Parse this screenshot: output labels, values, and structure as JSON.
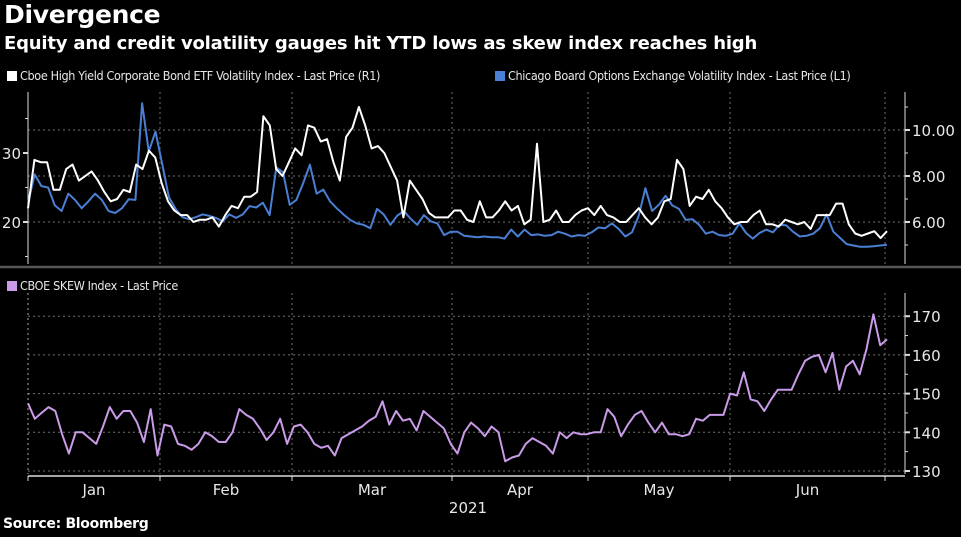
{
  "header": {
    "title": "Divergence",
    "subtitle": "Equity and credit volatility gauges hit YTD lows as skew index reaches  high"
  },
  "source": "Source: Bloomberg",
  "chart_data": [
    {
      "type": "line",
      "panel": "top",
      "x_labels": [
        "Jan",
        "Feb",
        "Mar",
        "Apr",
        "May",
        "Jun"
      ],
      "x_year_label": "2021",
      "grid": true,
      "legend_placement": "top-left",
      "left_axis": {
        "ticks": [
          20,
          30
        ],
        "ylim": [
          14.5,
          37
        ]
      },
      "right_axis": {
        "ticks": [
          "6.00",
          "8.00",
          "10.00"
        ],
        "tick_values": [
          6,
          8,
          10
        ],
        "ylim": [
          4.0,
          11.6
        ]
      },
      "series": [
        {
          "name": "Cboe High Yield Corporate Bond ETF Volatility Index - Last Price (R1)",
          "axis": "right",
          "color": "#ffffff",
          "values": [
            6.6,
            8.7,
            8.6,
            8.6,
            7.4,
            7.4,
            8.3,
            8.5,
            7.8,
            8.0,
            8.2,
            7.8,
            7.3,
            6.9,
            7.0,
            7.4,
            7.3,
            8.5,
            8.3,
            9.1,
            8.8,
            7.7,
            6.9,
            6.5,
            6.3,
            6.3,
            6.0,
            6.1,
            6.1,
            6.2,
            5.8,
            6.3,
            6.7,
            6.6,
            7.1,
            7.1,
            7.3,
            10.6,
            10.2,
            8.3,
            8.0,
            8.6,
            9.2,
            8.9,
            10.2,
            10.1,
            9.5,
            9.6,
            8.6,
            7.8,
            9.7,
            10.1,
            11.0,
            10.2,
            9.2,
            9.3,
            9.0,
            8.4,
            7.8,
            6.2,
            7.8,
            7.4,
            7.0,
            6.4,
            6.2,
            6.2,
            6.2,
            6.5,
            6.5,
            6.1,
            6.0,
            6.9,
            6.2,
            6.2,
            6.5,
            6.9,
            6.5,
            6.7,
            5.9,
            6.1,
            9.4,
            6.0,
            6.1,
            6.5,
            6.0,
            6.0,
            6.3,
            6.5,
            6.6,
            6.3,
            6.7,
            6.3,
            6.2,
            6.0,
            6.0,
            6.3,
            6.6,
            6.2,
            5.9,
            6.2,
            6.9,
            7.0,
            8.7,
            8.3,
            6.7,
            7.1,
            7.0,
            7.4,
            6.9,
            6.6,
            6.2,
            5.9,
            6.0,
            6.0,
            6.3,
            6.5,
            5.9,
            5.9,
            5.8,
            6.1,
            6.0,
            5.9,
            6.0,
            5.7,
            6.3,
            6.3,
            6.3,
            6.8,
            6.8,
            5.9,
            5.5,
            5.4,
            5.5,
            5.6,
            5.3,
            5.6
          ]
        },
        {
          "name": "Chicago Board Options Exchange Volatility Index - Last Price (L1)",
          "axis": "left",
          "color": "#4a7fd4",
          "values": [
            22.7,
            26.9,
            25.2,
            25.0,
            22.4,
            21.6,
            24.1,
            23.2,
            22.0,
            23.0,
            24.1,
            23.2,
            21.6,
            21.3,
            22.0,
            23.3,
            23.2,
            37.2,
            30.2,
            33.1,
            28.4,
            23.6,
            21.9,
            20.7,
            20.4,
            20.7,
            21.1,
            20.9,
            20.6,
            20.1,
            21.1,
            20.6,
            21.1,
            22.3,
            22.1,
            22.8,
            21.0,
            27.9,
            27.2,
            22.5,
            23.2,
            25.6,
            28.3,
            24.1,
            24.7,
            23.0,
            22.0,
            21.1,
            20.3,
            19.8,
            19.6,
            19.1,
            21.9,
            21.1,
            19.6,
            20.9,
            21.6,
            20.5,
            19.6,
            21.0,
            20.1,
            19.8,
            18.1,
            18.6,
            18.6,
            18.0,
            17.9,
            17.8,
            17.9,
            17.8,
            17.8,
            17.6,
            18.9,
            17.9,
            18.9,
            18.1,
            18.2,
            18.0,
            18.1,
            18.6,
            18.3,
            17.9,
            18.1,
            18.0,
            18.5,
            19.2,
            19.1,
            19.8,
            19.0,
            17.9,
            18.5,
            20.9,
            24.9,
            21.6,
            22.5,
            23.8,
            22.4,
            21.9,
            20.3,
            20.4,
            19.6,
            18.3,
            18.6,
            18.1,
            18.0,
            18.3,
            19.8,
            18.4,
            17.6,
            18.4,
            18.9,
            18.5,
            19.6,
            19.5,
            18.6,
            17.9,
            18.0,
            18.3,
            19.1,
            21.1,
            18.6,
            17.7,
            16.8,
            16.6,
            16.4,
            16.4,
            16.5,
            16.6,
            16.7
          ]
        }
      ]
    },
    {
      "type": "line",
      "panel": "bottom",
      "x_labels": [
        "Jan",
        "Feb",
        "Mar",
        "Apr",
        "May",
        "Jun"
      ],
      "x_year_label": "2021",
      "grid": true,
      "legend_placement": "top-left",
      "right_axis": {
        "ticks": [
          130,
          140,
          150,
          160,
          170
        ],
        "ylim": [
          129,
          174
        ]
      },
      "series": [
        {
          "name": "CBOE SKEW Index - Last Price",
          "axis": "right",
          "color": "#c99be8",
          "values": [
            147.5,
            143.5,
            145.0,
            146.5,
            145.5,
            139.5,
            134.5,
            140.0,
            140.0,
            138.5,
            137.0,
            141.5,
            146.5,
            143.5,
            145.5,
            145.5,
            142.5,
            137.5,
            146.0,
            134.0,
            142.0,
            141.5,
            137.0,
            136.5,
            135.5,
            137.0,
            140.0,
            139.0,
            137.5,
            137.5,
            140.0,
            146.0,
            144.5,
            143.5,
            141.0,
            138.0,
            140.0,
            143.5,
            137.0,
            141.5,
            142.0,
            140.0,
            137.0,
            136.0,
            136.5,
            134.0,
            138.5,
            139.5,
            140.5,
            141.5,
            143.0,
            144.0,
            148.0,
            142.0,
            145.5,
            143.0,
            143.5,
            140.5,
            145.5,
            144.0,
            142.5,
            141.0,
            137.0,
            134.5,
            140.0,
            142.5,
            141.0,
            139.0,
            141.5,
            140.0,
            132.5,
            133.5,
            134.0,
            137.0,
            138.5,
            137.5,
            136.5,
            134.5,
            140.0,
            138.5,
            140.0,
            139.5,
            139.5,
            140.0,
            140.0,
            146.0,
            144.0,
            139.0,
            142.0,
            144.5,
            145.5,
            142.5,
            140.0,
            142.5,
            139.5,
            139.5,
            139.0,
            139.5,
            143.5,
            143.0,
            144.5,
            144.5,
            144.5,
            150.0,
            149.5,
            155.5,
            148.5,
            148.0,
            145.5,
            148.5,
            151.0,
            151.0,
            151.0,
            155.0,
            158.5,
            159.5,
            160.0,
            155.5,
            160.5,
            151.0,
            157.0,
            158.5,
            155.0,
            161.5,
            170.5,
            162.5,
            164.0
          ]
        }
      ]
    }
  ]
}
